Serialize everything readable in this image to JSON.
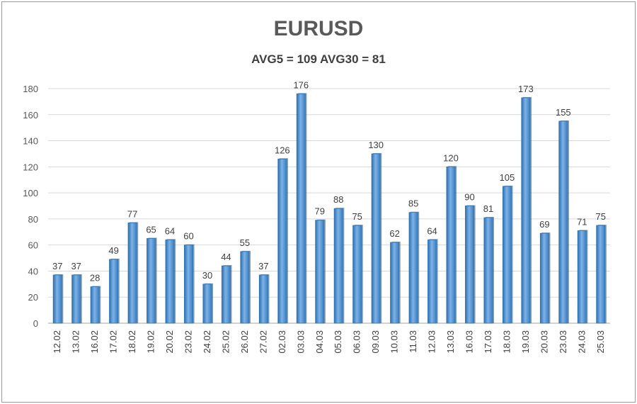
{
  "chart_data": {
    "type": "bar",
    "title": "EURUSD",
    "subtitle": "AVG5 = 109 AVG30 = 81",
    "categories": [
      "12.02",
      "13.02",
      "16.02",
      "17.02",
      "18.02",
      "19.02",
      "20.02",
      "23.02",
      "24.02",
      "25.02",
      "26.02",
      "27.02",
      "02.03",
      "03.03",
      "04.03",
      "05.03",
      "06.03",
      "09.03",
      "10.03",
      "11.03",
      "12.03",
      "13.03",
      "16.03",
      "17.03",
      "18.03",
      "19.03",
      "20.03",
      "23.03",
      "24.03",
      "25.03"
    ],
    "values": [
      37,
      37,
      28,
      49,
      77,
      65,
      64,
      60,
      30,
      44,
      55,
      37,
      126,
      176,
      79,
      88,
      75,
      130,
      62,
      85,
      64,
      120,
      90,
      81,
      105,
      173,
      69,
      155,
      71,
      75
    ],
    "ylim": [
      0,
      180
    ],
    "yticks": [
      0,
      20,
      40,
      60,
      80,
      100,
      120,
      140,
      160,
      180
    ],
    "grid": true,
    "legend": "none",
    "bar_color": "#5b9bd5",
    "bar_edge_color": "#2e75b6"
  }
}
